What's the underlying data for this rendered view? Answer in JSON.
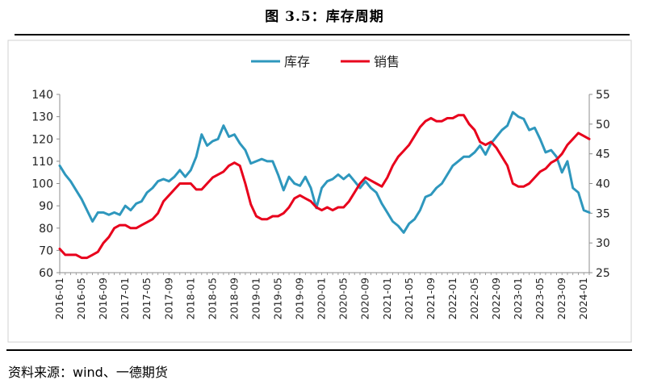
{
  "figure": {
    "title": "图 3.5：库存周期",
    "source": "资料来源：wind、一德期货"
  },
  "colors": {
    "inventory": "#2e97bd",
    "sales": "#e8001c",
    "axis": "#8c8c8c"
  },
  "chart_data": {
    "type": "line",
    "title": "",
    "legend_position": "top-center",
    "grid": false,
    "x": [
      "2016-01",
      "2016-02",
      "2016-03",
      "2016-04",
      "2016-05",
      "2016-06",
      "2016-07",
      "2016-08",
      "2016-09",
      "2016-10",
      "2016-11",
      "2016-12",
      "2017-01",
      "2017-02",
      "2017-03",
      "2017-04",
      "2017-05",
      "2017-06",
      "2017-07",
      "2017-08",
      "2017-09",
      "2017-10",
      "2017-11",
      "2017-12",
      "2018-01",
      "2018-02",
      "2018-03",
      "2018-04",
      "2018-05",
      "2018-06",
      "2018-07",
      "2018-08",
      "2018-09",
      "2018-10",
      "2018-11",
      "2018-12",
      "2019-01",
      "2019-02",
      "2019-03",
      "2019-04",
      "2019-05",
      "2019-06",
      "2019-07",
      "2019-08",
      "2019-09",
      "2019-10",
      "2019-11",
      "2019-12",
      "2020-01",
      "2020-02",
      "2020-03",
      "2020-04",
      "2020-05",
      "2020-06",
      "2020-07",
      "2020-08",
      "2020-09",
      "2020-10",
      "2020-11",
      "2020-12",
      "2021-01",
      "2021-02",
      "2021-03",
      "2021-04",
      "2021-05",
      "2021-06",
      "2021-07",
      "2021-08",
      "2021-09",
      "2021-10",
      "2021-11",
      "2021-12",
      "2022-01",
      "2022-02",
      "2022-03",
      "2022-04",
      "2022-05",
      "2022-06",
      "2022-07",
      "2022-08",
      "2022-09",
      "2022-10",
      "2022-11",
      "2022-12",
      "2023-01",
      "2023-02",
      "2023-03",
      "2023-04",
      "2023-05",
      "2023-06",
      "2023-07",
      "2023-08",
      "2023-09",
      "2023-10",
      "2023-11",
      "2023-12",
      "2024-01",
      "2024-02"
    ],
    "x_tick_labels": [
      "2016-01",
      "2016-05",
      "2016-09",
      "2017-01",
      "2017-05",
      "2017-09",
      "2018-01",
      "2018-05",
      "2018-09",
      "2019-01",
      "2019-05",
      "2019-09",
      "2020-01",
      "2020-05",
      "2020-09",
      "2021-01",
      "2021-05",
      "2021-09",
      "2022-01",
      "2022-05",
      "2022-09",
      "2023-01",
      "2023-05",
      "2023-09",
      "2024-01"
    ],
    "y_left": {
      "lim": [
        60,
        140
      ],
      "ticks": [
        60,
        70,
        80,
        90,
        100,
        110,
        120,
        130,
        140
      ]
    },
    "y_right": {
      "lim": [
        25,
        55
      ],
      "ticks": [
        25,
        30,
        35,
        40,
        45,
        50,
        55
      ]
    },
    "series": [
      {
        "name": "库存",
        "axis": "left",
        "color": "#2e97bd",
        "values": [
          108,
          104,
          101,
          97,
          93,
          88,
          83,
          87,
          87,
          86,
          87,
          86,
          90,
          88,
          91,
          92,
          96,
          98,
          101,
          102,
          101,
          103,
          106,
          103,
          106,
          112,
          122,
          117,
          119,
          120,
          126,
          121,
          122,
          118,
          115,
          109,
          110,
          111,
          110,
          110,
          104,
          97,
          103,
          100,
          99,
          103,
          98,
          89,
          98,
          101,
          102,
          104,
          102,
          104,
          101,
          98,
          101,
          98,
          96,
          91,
          87,
          83,
          81,
          78,
          82,
          84,
          88,
          94,
          95,
          98,
          100,
          104,
          108,
          110,
          112,
          112,
          114,
          117,
          113,
          118,
          121,
          124,
          126,
          132,
          130,
          129,
          124,
          125,
          120,
          114,
          115,
          112,
          105,
          110,
          98,
          96,
          88,
          87
        ]
      },
      {
        "name": "销售",
        "axis": "right",
        "color": "#e8001c",
        "values": [
          29,
          28,
          28,
          28,
          27.5,
          27.5,
          28,
          28.5,
          30,
          31,
          32.5,
          33,
          33,
          32.5,
          32.5,
          33,
          33.5,
          34,
          35,
          37,
          38,
          39,
          40,
          40,
          40,
          39,
          39,
          40,
          41,
          41.5,
          42,
          43,
          43.5,
          43,
          40,
          36.5,
          34.5,
          34,
          34,
          34.5,
          34.5,
          35,
          36,
          37.5,
          38,
          37.5,
          37,
          36,
          35.5,
          36,
          35.5,
          36,
          36,
          37,
          38.5,
          40,
          41,
          40.5,
          40,
          39.5,
          41,
          43,
          44.5,
          45.5,
          46.5,
          48,
          49.5,
          50.5,
          51,
          50.5,
          50.5,
          51,
          51,
          51.5,
          51.5,
          50,
          49,
          47,
          46.5,
          47,
          46,
          44.5,
          43,
          40,
          39.5,
          39.5,
          40,
          41,
          42,
          42.5,
          43.5,
          44,
          45,
          46.5,
          47.5,
          48.5,
          48,
          47.5
        ]
      }
    ]
  }
}
